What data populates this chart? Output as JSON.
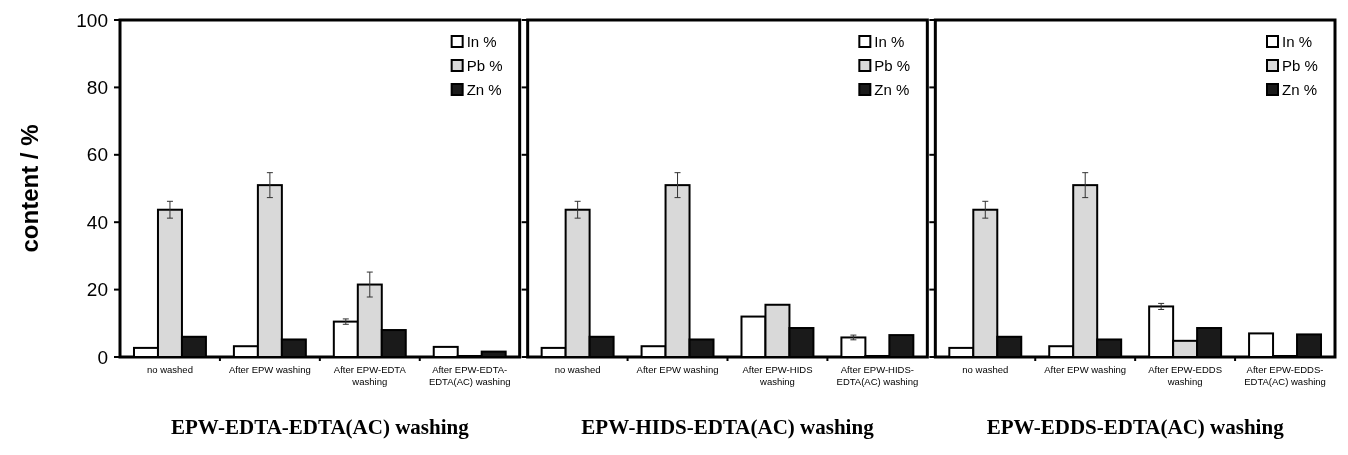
{
  "chart_data": [
    {
      "type": "bar",
      "xlabel": "EPW-EDTA-EDTA(AC) washing",
      "ylabel": "content / %",
      "categories": [
        "no washed",
        "After EPW washing",
        "After EPW-EDTA washing",
        "After EPW-EDTA-EDTA(AC) washing"
      ],
      "series": [
        {
          "name": "In %",
          "color": "#ffffff",
          "values": [
            2.7,
            3.2,
            10.5,
            3.0
          ],
          "errors": [
            null,
            null,
            0.8,
            null
          ]
        },
        {
          "name": "Pb %",
          "color": "#d9d9d9",
          "values": [
            43.7,
            51,
            21.5,
            0.3
          ],
          "errors": [
            2.5,
            3.7,
            3.7,
            null
          ]
        },
        {
          "name": "Zn %",
          "color": "#1a1a1a",
          "values": [
            6,
            5.2,
            8,
            1.6
          ],
          "errors": [
            null,
            null,
            null,
            null
          ]
        }
      ],
      "ylim": [
        0,
        100
      ],
      "yticks": [
        0,
        20,
        40,
        60,
        80,
        100
      ],
      "legend": "top right"
    },
    {
      "type": "bar",
      "xlabel": "EPW-HIDS-EDTA(AC) washing",
      "categories": [
        "no washed",
        "After EPW washing",
        "After EPW-HIDS washing",
        "After EPW-HIDS-EDTA(AC) washing"
      ],
      "series": [
        {
          "name": "In %",
          "color": "#ffffff",
          "values": [
            2.7,
            3.2,
            12,
            5.8
          ],
          "errors": [
            null,
            null,
            null,
            0.7
          ]
        },
        {
          "name": "Pb %",
          "color": "#d9d9d9",
          "values": [
            43.7,
            51,
            15.5,
            0.3
          ],
          "errors": [
            2.5,
            3.7,
            null,
            null
          ]
        },
        {
          "name": "Zn %",
          "color": "#1a1a1a",
          "values": [
            6,
            5.2,
            8.6,
            6.5
          ],
          "errors": [
            null,
            null,
            null,
            null
          ]
        }
      ],
      "ylim": [
        0,
        100
      ],
      "yticks": [
        0,
        20,
        40,
        60,
        80,
        100
      ],
      "legend": "top right",
      "tick_labels": "x"
    },
    {
      "type": "bar",
      "xlabel": "EPW-EDDS-EDTA(AC) washing",
      "categories": [
        "no washed",
        "After EPW washing",
        "After EPW-EDDS washing",
        "After EPW-EDDS-EDTA(AC) washing"
      ],
      "series": [
        {
          "name": "In %",
          "color": "#ffffff",
          "values": [
            2.7,
            3.2,
            15,
            7
          ],
          "errors": [
            null,
            null,
            0.9,
            null
          ]
        },
        {
          "name": "Pb %",
          "color": "#d9d9d9",
          "values": [
            43.7,
            51,
            4.8,
            0.3
          ],
          "errors": [
            2.5,
            3.7,
            null,
            null
          ]
        },
        {
          "name": "Zn %",
          "color": "#1a1a1a",
          "values": [
            6,
            5.2,
            8.6,
            6.7
          ],
          "errors": [
            null,
            null,
            null,
            null
          ]
        }
      ],
      "ylim": [
        0,
        100
      ],
      "yticks": [
        0,
        20,
        40,
        60,
        80,
        100
      ],
      "legend": "top right",
      "tick_labels": "x"
    }
  ]
}
